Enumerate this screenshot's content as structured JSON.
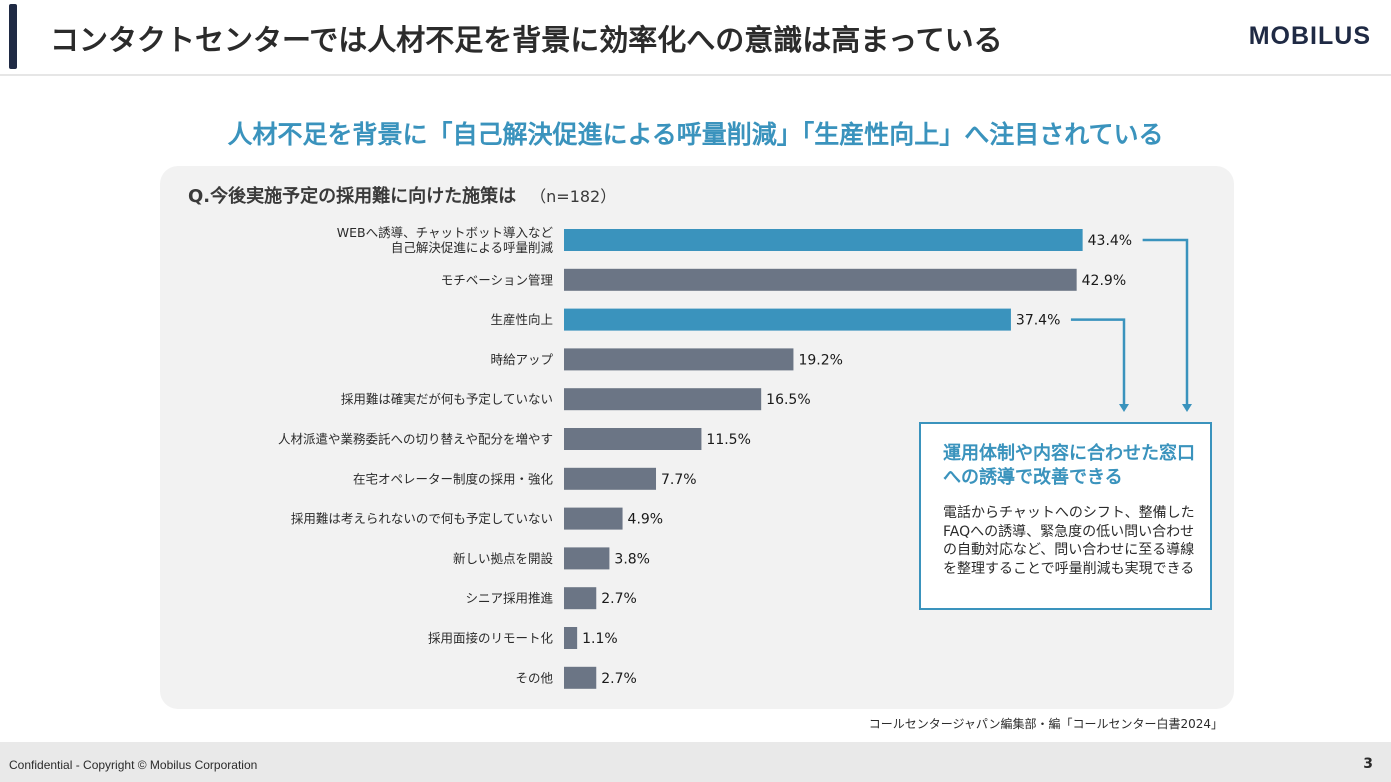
{
  "header": {
    "title": "コンタクトセンターでは人材不足を背景に効率化への意識は高まっている",
    "logo": "MOBILUS"
  },
  "subtitle": "人材不足を背景に「自己解決促進による呼量削減」「生産性向上」へ注目されている",
  "question": {
    "text": "Q.今後実施予定の採用難に向けた施策は",
    "sample": "（n=182）"
  },
  "chart_data": {
    "type": "bar",
    "orientation": "horizontal",
    "categories": [
      "WEBへ誘導、チャットボット導入など\n自己解決促進による呼量削減",
      "モチベーション管理",
      "生産性向上",
      "時給アップ",
      "採用難は確実だが何も予定していない",
      "人材派遣や業務委託への切り替えや配分を増やす",
      "在宅オペレーター制度の採用・強化",
      "採用難は考えられないので何も予定していない",
      "新しい拠点を開設",
      "シニア採用推進",
      "採用面接のリモート化",
      "その他"
    ],
    "values": [
      43.4,
      42.9,
      37.4,
      19.2,
      16.5,
      11.5,
      7.7,
      4.9,
      3.8,
      2.7,
      1.1,
      2.7
    ],
    "value_labels": [
      "43.4%",
      "42.9%",
      "37.4%",
      "19.2%",
      "16.5%",
      "11.5%",
      "7.7%",
      "4.9%",
      "3.8%",
      "2.7%",
      "1.1%",
      "2.7%"
    ],
    "highlighted": [
      true,
      false,
      true,
      false,
      false,
      false,
      false,
      false,
      false,
      false,
      false,
      false
    ],
    "colors": {
      "highlight": "#3a93bd",
      "default": "#6b7585"
    },
    "xlim": [
      0,
      50
    ],
    "grid": false,
    "legend": "none"
  },
  "callout": {
    "title": "運用体制や内容に合わせた窓口への誘導で改善できる",
    "body": "電話からチャットへのシフト、整備したFAQへの誘導、緊急度の低い問い合わせの自動対応など、問い合わせに至る導線を整理することで呼量削減も実現できる"
  },
  "source": "コールセンタージャパン編集部・編「コールセンター白書2024」",
  "footer": {
    "copyright": "Confidential - Copyright © Mobilus Corporation",
    "page": "3"
  }
}
